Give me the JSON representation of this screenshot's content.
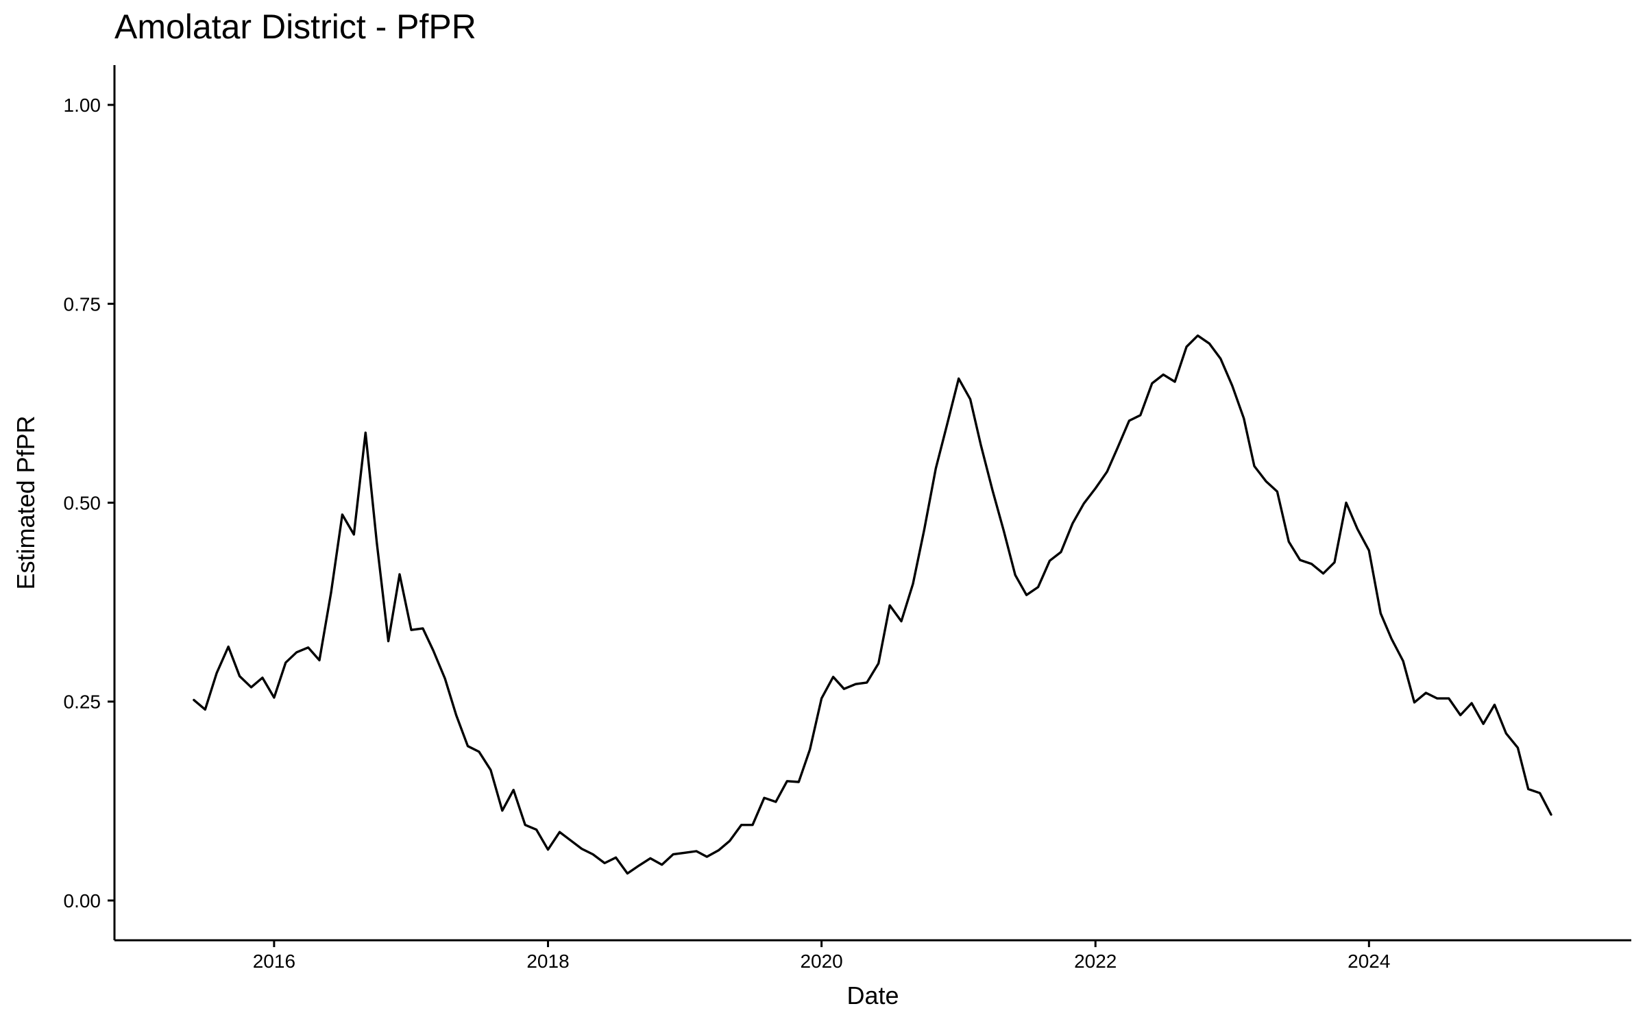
{
  "chart_data": {
    "type": "line",
    "title": "Amolatar District - PfPR",
    "xlabel": "Date",
    "ylabel": "Estimated PfPR",
    "xlim": [
      "2014-11-01",
      "2025-12-01"
    ],
    "ylim": [
      -0.05,
      1.05
    ],
    "xticks": [
      {
        "date": "2016-01-01",
        "label": "2016"
      },
      {
        "date": "2018-01-01",
        "label": "2018"
      },
      {
        "date": "2020-01-01",
        "label": "2020"
      },
      {
        "date": "2022-01-01",
        "label": "2022"
      },
      {
        "date": "2024-01-01",
        "label": "2024"
      }
    ],
    "yticks": [
      {
        "value": 0.0,
        "label": "0.00"
      },
      {
        "value": 0.25,
        "label": "0.25"
      },
      {
        "value": 0.5,
        "label": "0.50"
      },
      {
        "value": 0.75,
        "label": "0.75"
      },
      {
        "value": 1.0,
        "label": "1.00"
      }
    ],
    "grid": false,
    "legend": "none",
    "line_color": "#000000",
    "series": [
      {
        "values": [
          [
            "2015-06-01",
            0.252
          ],
          [
            "2015-07-01",
            0.24
          ],
          [
            "2015-08-01",
            0.286
          ],
          [
            "2015-09-01",
            0.319
          ],
          [
            "2015-10-01",
            0.282
          ],
          [
            "2015-11-01",
            0.268
          ],
          [
            "2015-12-01",
            0.28
          ],
          [
            "2016-01-01",
            0.255
          ],
          [
            "2016-02-01",
            0.299
          ],
          [
            "2016-03-01",
            0.312
          ],
          [
            "2016-04-01",
            0.318
          ],
          [
            "2016-05-01",
            0.302
          ],
          [
            "2016-06-01",
            0.387
          ],
          [
            "2016-07-01",
            0.485
          ],
          [
            "2016-08-01",
            0.46
          ],
          [
            "2016-09-01",
            0.588
          ],
          [
            "2016-10-01",
            0.45
          ],
          [
            "2016-11-01",
            0.326
          ],
          [
            "2016-12-01",
            0.41
          ],
          [
            "2017-01-01",
            0.34
          ],
          [
            "2017-02-01",
            0.342
          ],
          [
            "2017-03-01",
            0.314
          ],
          [
            "2017-04-01",
            0.279
          ],
          [
            "2017-05-01",
            0.233
          ],
          [
            "2017-06-01",
            0.194
          ],
          [
            "2017-07-01",
            0.187
          ],
          [
            "2017-08-01",
            0.164
          ],
          [
            "2017-09-01",
            0.113
          ],
          [
            "2017-10-01",
            0.139
          ],
          [
            "2017-11-01",
            0.095
          ],
          [
            "2017-12-01",
            0.089
          ],
          [
            "2018-01-01",
            0.064
          ],
          [
            "2018-02-01",
            0.086
          ],
          [
            "2018-03-01",
            0.076
          ],
          [
            "2018-04-01",
            0.065
          ],
          [
            "2018-05-01",
            0.058
          ],
          [
            "2018-06-01",
            0.047
          ],
          [
            "2018-07-01",
            0.054
          ],
          [
            "2018-08-01",
            0.034
          ],
          [
            "2018-09-01",
            0.044
          ],
          [
            "2018-10-01",
            0.053
          ],
          [
            "2018-11-01",
            0.045
          ],
          [
            "2018-12-01",
            0.058
          ],
          [
            "2019-01-01",
            0.06
          ],
          [
            "2019-02-01",
            0.062
          ],
          [
            "2019-03-01",
            0.055
          ],
          [
            "2019-04-01",
            0.063
          ],
          [
            "2019-05-01",
            0.075
          ],
          [
            "2019-06-01",
            0.095
          ],
          [
            "2019-07-01",
            0.095
          ],
          [
            "2019-08-01",
            0.129
          ],
          [
            "2019-09-01",
            0.124
          ],
          [
            "2019-10-01",
            0.15
          ],
          [
            "2019-11-01",
            0.149
          ],
          [
            "2019-12-01",
            0.19
          ],
          [
            "2020-01-01",
            0.254
          ],
          [
            "2020-02-01",
            0.281
          ],
          [
            "2020-03-01",
            0.266
          ],
          [
            "2020-04-01",
            0.272
          ],
          [
            "2020-05-01",
            0.274
          ],
          [
            "2020-06-01",
            0.298
          ],
          [
            "2020-07-01",
            0.371
          ],
          [
            "2020-08-01",
            0.351
          ],
          [
            "2020-09-01",
            0.398
          ],
          [
            "2020-10-01",
            0.466
          ],
          [
            "2020-11-01",
            0.543
          ],
          [
            "2020-12-01",
            0.598
          ],
          [
            "2021-01-01",
            0.656
          ],
          [
            "2021-02-01",
            0.63
          ],
          [
            "2021-03-01",
            0.573
          ],
          [
            "2021-04-01",
            0.516
          ],
          [
            "2021-05-01",
            0.465
          ],
          [
            "2021-06-01",
            0.409
          ],
          [
            "2021-07-01",
            0.384
          ],
          [
            "2021-08-01",
            0.394
          ],
          [
            "2021-09-01",
            0.427
          ],
          [
            "2021-10-01",
            0.438
          ],
          [
            "2021-11-01",
            0.474
          ],
          [
            "2021-12-01",
            0.499
          ],
          [
            "2022-01-01",
            0.518
          ],
          [
            "2022-02-01",
            0.539
          ],
          [
            "2022-03-01",
            0.569
          ],
          [
            "2022-04-01",
            0.603
          ],
          [
            "2022-05-01",
            0.61
          ],
          [
            "2022-06-01",
            0.65
          ],
          [
            "2022-07-01",
            0.661
          ],
          [
            "2022-08-01",
            0.652
          ],
          [
            "2022-09-01",
            0.696
          ],
          [
            "2022-10-01",
            0.71
          ],
          [
            "2022-11-01",
            0.7
          ],
          [
            "2022-12-01",
            0.681
          ],
          [
            "2023-01-01",
            0.647
          ],
          [
            "2023-02-01",
            0.606
          ],
          [
            "2023-03-01",
            0.546
          ],
          [
            "2023-04-01",
            0.527
          ],
          [
            "2023-05-01",
            0.514
          ],
          [
            "2023-06-01",
            0.451
          ],
          [
            "2023-07-01",
            0.428
          ],
          [
            "2023-08-01",
            0.423
          ],
          [
            "2023-09-01",
            0.411
          ],
          [
            "2023-10-01",
            0.425
          ],
          [
            "2023-11-01",
            0.5
          ],
          [
            "2023-12-01",
            0.467
          ],
          [
            "2024-01-01",
            0.44
          ],
          [
            "2024-02-01",
            0.361
          ],
          [
            "2024-03-01",
            0.329
          ],
          [
            "2024-04-01",
            0.301
          ],
          [
            "2024-05-01",
            0.249
          ],
          [
            "2024-06-01",
            0.261
          ],
          [
            "2024-07-01",
            0.254
          ],
          [
            "2024-08-01",
            0.254
          ],
          [
            "2024-09-01",
            0.233
          ],
          [
            "2024-10-01",
            0.248
          ],
          [
            "2024-11-01",
            0.222
          ],
          [
            "2024-12-01",
            0.246
          ],
          [
            "2025-01-01",
            0.21
          ],
          [
            "2025-02-01",
            0.192
          ],
          [
            "2025-03-01",
            0.14
          ],
          [
            "2025-04-01",
            0.135
          ],
          [
            "2025-05-01",
            0.108
          ]
        ]
      }
    ]
  }
}
